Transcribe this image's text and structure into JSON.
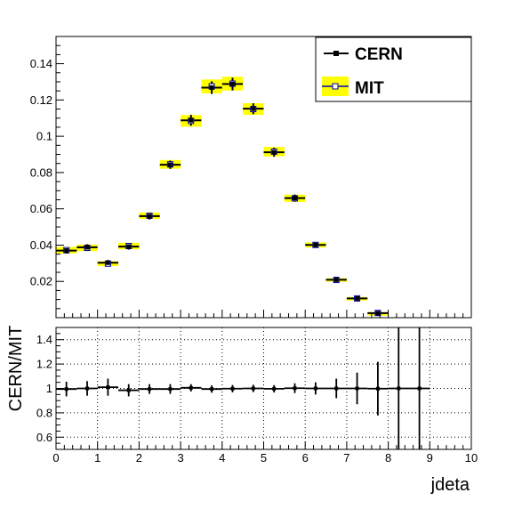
{
  "chart_data": [
    {
      "type": "scatter",
      "title": "",
      "xlabel": "",
      "ylabel": "",
      "xlim": [
        0,
        10
      ],
      "ylim": [
        0,
        0.155
      ],
      "x_ticks": [],
      "y_ticks": [
        0.02,
        0.04,
        0.06,
        0.08,
        0.1,
        0.12,
        0.14
      ],
      "y_tick_labels": [
        "0.02",
        "0.04",
        "0.06",
        "0.08",
        "0.1",
        "0.12",
        "0.14"
      ],
      "x_bin_edges": [
        0,
        0.5,
        1,
        1.5,
        2,
        2.5,
        3,
        3.5,
        4,
        4.5,
        5,
        5.5,
        6,
        6.5,
        7,
        7.5,
        8,
        8.5,
        9,
        9.5,
        10
      ],
      "legend_position": "top-right",
      "series": [
        {
          "name": "CERN",
          "marker": "filled-square-with-errorbars",
          "color": "#000000",
          "x": [
            0.25,
            0.75,
            1.25,
            1.75,
            2.25,
            2.75,
            3.25,
            3.75,
            4.25,
            4.75,
            5.25,
            5.75,
            6.25,
            6.75,
            7.25,
            7.75
          ],
          "values": [
            0.037,
            0.0388,
            0.0303,
            0.0392,
            0.056,
            0.0843,
            0.1088,
            0.1268,
            0.1288,
            0.1152,
            0.0912,
            0.0659,
            0.0401,
            0.0209,
            0.0106,
            0.0025
          ],
          "errors": [
            0.0012,
            0.0012,
            0.001,
            0.0012,
            0.0014,
            0.0018,
            0.0025,
            0.003,
            0.003,
            0.0025,
            0.002,
            0.0015,
            0.0011,
            0.0008,
            0.0006,
            0.0004
          ]
        },
        {
          "name": "MIT",
          "marker": "open-square-with-yellow-band",
          "color": "#0000aa",
          "band_color": "#ffff00",
          "x": [
            0.25,
            0.75,
            1.25,
            1.75,
            2.25,
            2.75,
            3.25,
            3.75,
            4.25,
            4.75,
            5.25,
            5.75,
            6.25,
            6.75,
            7.25,
            7.75
          ],
          "values": [
            0.0372,
            0.0385,
            0.0298,
            0.0395,
            0.0562,
            0.0845,
            0.1085,
            0.1275,
            0.129,
            0.115,
            0.0915,
            0.0658,
            0.0401,
            0.0208,
            0.0106,
            0.0026
          ],
          "errors": [
            0.0018,
            0.0018,
            0.0014,
            0.0018,
            0.0018,
            0.0024,
            0.0032,
            0.0038,
            0.0038,
            0.0032,
            0.0026,
            0.002,
            0.0014,
            0.001,
            0.0008,
            0.0005
          ]
        }
      ]
    },
    {
      "type": "scatter",
      "title": "",
      "xlabel": "jdeta",
      "ylabel": "CERN/MIT",
      "xlim": [
        0,
        10
      ],
      "ylim": [
        0.5,
        1.5
      ],
      "x_ticks": [
        0,
        1,
        2,
        3,
        4,
        5,
        6,
        7,
        8,
        9,
        10
      ],
      "x_tick_labels": [
        "0",
        "1",
        "2",
        "3",
        "4",
        "5",
        "6",
        "7",
        "8",
        "9",
        "10"
      ],
      "y_ticks": [
        0.6,
        0.8,
        1,
        1.2,
        1.4
      ],
      "y_tick_labels": [
        "0.6",
        "0.8",
        "1",
        "1.2",
        "1.4"
      ],
      "grid": true,
      "series": [
        {
          "x": [
            0.25,
            0.75,
            1.25,
            1.75,
            2.25,
            2.75,
            3.25,
            3.75,
            4.25,
            4.75,
            5.25,
            5.75,
            6.25,
            6.75,
            7.25,
            7.75,
            8.25,
            8.75
          ],
          "values": [
            0.995,
            1.0,
            1.01,
            0.985,
            0.995,
            0.995,
            1.005,
            0.995,
            0.998,
            1.0,
            0.997,
            1.002,
            1.0,
            1.0,
            1.0,
            0.998,
            1.0,
            1.0
          ],
          "errors": [
            0.06,
            0.06,
            0.07,
            0.05,
            0.04,
            0.04,
            0.03,
            0.03,
            0.03,
            0.03,
            0.03,
            0.04,
            0.05,
            0.08,
            0.13,
            0.22,
            1.0,
            1.0
          ]
        }
      ]
    }
  ]
}
